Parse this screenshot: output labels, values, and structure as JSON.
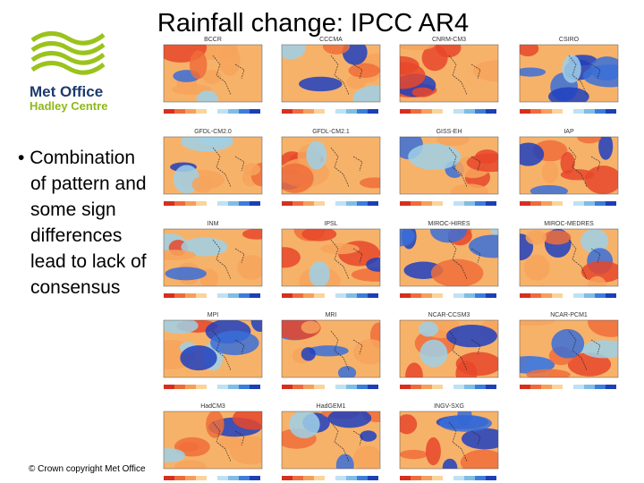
{
  "header": {
    "title": "Rainfall change: IPCC AR4"
  },
  "logo": {
    "line1": "Met Office",
    "line2": "Hadley Centre"
  },
  "bullet": "Combination of pattern and some sign differences lead to lack of consensus",
  "footer": "© Crown copyright   Met Office",
  "maps": [
    {
      "label": "BCCR"
    },
    {
      "label": "CCCMA"
    },
    {
      "label": "CNRM-CM3"
    },
    {
      "label": "CSIRO"
    },
    {
      "label": "GFDL-CM2.0"
    },
    {
      "label": "GFDL-CM2.1"
    },
    {
      "label": "GISS-EH"
    },
    {
      "label": "IAP"
    },
    {
      "label": "INM"
    },
    {
      "label": "IPSL"
    },
    {
      "label": "MIROC-HIRES"
    },
    {
      "label": "MIROC-MEDRES"
    },
    {
      "label": "MPI"
    },
    {
      "label": "MRI"
    },
    {
      "label": "NCAR-CCSM3"
    },
    {
      "label": "NCAR-PCM1"
    },
    {
      "label": "HadCM3"
    },
    {
      "label": "HadGEM1"
    },
    {
      "label": "INGV-SXG"
    }
  ]
}
